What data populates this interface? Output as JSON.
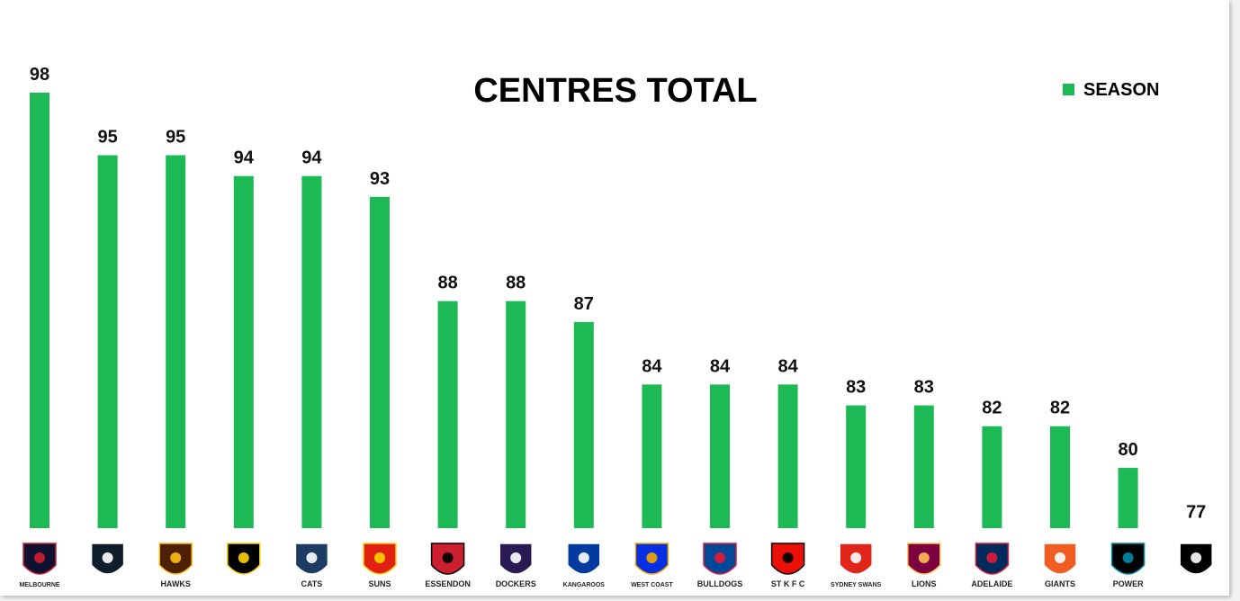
{
  "chart_data": {
    "type": "bar",
    "title": "CENTRES TOTAL",
    "legend": {
      "position": "top-right",
      "entries": [
        "SEASON"
      ]
    },
    "series": [
      {
        "name": "SEASON",
        "color": "#1db954",
        "values": [
          98,
          95,
          95,
          94,
          94,
          93,
          88,
          88,
          87,
          84,
          84,
          84,
          83,
          83,
          82,
          82,
          80,
          77
        ]
      }
    ],
    "categories": [
      {
        "team": "Melbourne",
        "logo_text": "MELBOURNE",
        "logo_icon": "melbourne-demons-logo",
        "color": "#0f1131",
        "accent": "#cc2031"
      },
      {
        "team": "Carlton",
        "logo_text": "",
        "logo_icon": "carlton-blues-logo",
        "color": "#0e1e2d",
        "accent": "#ffffff"
      },
      {
        "team": "Hawthorn",
        "logo_text": "HAWKS",
        "logo_icon": "hawthorn-hawks-logo",
        "color": "#4d2004",
        "accent": "#fbbf15"
      },
      {
        "team": "Richmond",
        "logo_text": "",
        "logo_icon": "richmond-tigers-logo",
        "color": "#000000",
        "accent": "#fed102"
      },
      {
        "team": "Geelong",
        "logo_text": "CATS",
        "logo_icon": "geelong-cats-logo",
        "color": "#1c3c63",
        "accent": "#ffffff"
      },
      {
        "team": "Gold Coast",
        "logo_text": "SUNS",
        "logo_icon": "gold-coast-suns-logo",
        "color": "#e02112",
        "accent": "#ffd200"
      },
      {
        "team": "Essendon",
        "logo_text": "ESSENDON",
        "logo_icon": "essendon-bombers-logo",
        "color": "#cc2031",
        "accent": "#000000"
      },
      {
        "team": "Fremantle",
        "logo_text": "DOCKERS",
        "logo_icon": "fremantle-dockers-logo",
        "color": "#2a1a54",
        "accent": "#ffffff"
      },
      {
        "team": "North Melbourne",
        "logo_text": "KANGAROOS",
        "logo_icon": "north-melbourne-kangaroos-logo",
        "color": "#013b9f",
        "accent": "#ffffff"
      },
      {
        "team": "West Coast",
        "logo_text": "WEST COAST",
        "logo_icon": "west-coast-eagles-logo",
        "color": "#062ee2",
        "accent": "#f2a900"
      },
      {
        "team": "Western Bulldogs",
        "logo_text": "BULLDOGS",
        "logo_icon": "western-bulldogs-logo",
        "color": "#014896",
        "accent": "#e31937"
      },
      {
        "team": "St Kilda",
        "logo_text": "ST K F C",
        "logo_icon": "st-kilda-saints-logo",
        "color": "#ed0f05",
        "accent": "#000000"
      },
      {
        "team": "Sydney",
        "logo_text": "SYDNEY SWANS",
        "logo_icon": "sydney-swans-logo",
        "color": "#e1251b",
        "accent": "#ffffff"
      },
      {
        "team": "Brisbane",
        "logo_text": "LIONS",
        "logo_icon": "brisbane-lions-logo",
        "color": "#7c003e",
        "accent": "#fdbe57"
      },
      {
        "team": "Adelaide",
        "logo_text": "ADELAIDE",
        "logo_icon": "adelaide-crows-logo",
        "color": "#002b5c",
        "accent": "#e21937"
      },
      {
        "team": "GWS",
        "logo_text": "GIANTS",
        "logo_icon": "gws-giants-logo",
        "color": "#f15c22",
        "accent": "#ffffff"
      },
      {
        "team": "Port Adelaide",
        "logo_text": "POWER",
        "logo_icon": "port-adelaide-power-logo",
        "color": "#000000",
        "accent": "#008aab"
      },
      {
        "team": "Collingwood",
        "logo_text": "",
        "logo_icon": "collingwood-magpies-logo",
        "color": "#000000",
        "accent": "#ffffff"
      }
    ],
    "ylim": [
      0,
      100
    ],
    "grid": false,
    "data_labels": true
  }
}
